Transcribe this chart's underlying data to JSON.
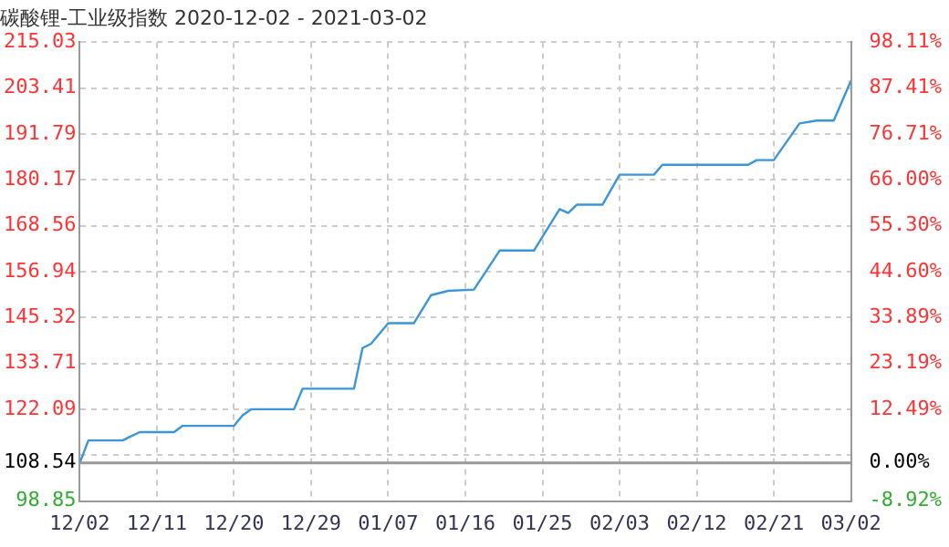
{
  "chart_data": {
    "type": "line",
    "title": "碳酸锂-工业级指数 2020-12-02 - 2021-03-02",
    "x": [
      "2020-12-02",
      "2020-12-03",
      "2020-12-07",
      "2020-12-08",
      "2020-12-09",
      "2020-12-13",
      "2020-12-14",
      "2020-12-20",
      "2020-12-21",
      "2020-12-22",
      "2020-12-27",
      "2020-12-28",
      "2021-01-03",
      "2021-01-04",
      "2021-01-05",
      "2021-01-07",
      "2021-01-10",
      "2021-01-12",
      "2021-01-14",
      "2021-01-17",
      "2021-01-20",
      "2021-01-24",
      "2021-01-27",
      "2021-01-28",
      "2021-01-29",
      "2021-02-01",
      "2021-02-03",
      "2021-02-07",
      "2021-02-08",
      "2021-02-18",
      "2021-02-19",
      "2021-02-21",
      "2021-02-24",
      "2021-02-26",
      "2021-02-28",
      "2021-03-02"
    ],
    "series": [
      {
        "color": "#3a96d8",
        "values": [
          108.54,
          114.2,
          114.2,
          115.3,
          116.3,
          116.3,
          117.9,
          117.9,
          120.6,
          122.1,
          122.1,
          127.3,
          127.3,
          137.6,
          138.7,
          143.9,
          143.9,
          151.0,
          152.1,
          152.4,
          162.3,
          162.3,
          172.8,
          171.8,
          173.9,
          173.9,
          181.5,
          181.5,
          184.0,
          184.0,
          185.2,
          185.2,
          194.5,
          195.2,
          195.2,
          205.3
        ]
      }
    ],
    "xlim": [
      "2020-12-02",
      "2021-03-02"
    ],
    "xticks": [
      {
        "value": "2020-12-02",
        "label": "12/02"
      },
      {
        "value": "2020-12-11",
        "label": "12/11"
      },
      {
        "value": "2020-12-20",
        "label": "12/20"
      },
      {
        "value": "2020-12-29",
        "label": "12/29"
      },
      {
        "value": "2021-01-07",
        "label": "01/07"
      },
      {
        "value": "2021-01-16",
        "label": "01/16"
      },
      {
        "value": "2021-01-25",
        "label": "01/25"
      },
      {
        "value": "2021-02-03",
        "label": "02/03"
      },
      {
        "value": "2021-02-12",
        "label": "02/12"
      },
      {
        "value": "2021-02-21",
        "label": "02/21"
      },
      {
        "value": "2021-03-02",
        "label": "03/02"
      }
    ],
    "ylim": [
      98.85,
      215.03
    ],
    "yticks": [
      98.85,
      108.54,
      {
        "value": 110.47,
        "label": null
      },
      122.09,
      133.71,
      145.32,
      156.94,
      168.56,
      180.17,
      191.79,
      203.41,
      215.03
    ],
    "y2lim": [
      -8.92,
      98.11
    ],
    "y2ticks": [
      {
        "value": -8.92,
        "label": "-8.92%"
      },
      {
        "value": 0,
        "label": "0.00%"
      },
      {
        "value": 12.49,
        "label": "12.49%"
      },
      {
        "value": 23.19,
        "label": "23.19%"
      },
      {
        "value": 33.89,
        "label": "33.89%"
      },
      {
        "value": 44.6,
        "label": "44.60%"
      },
      {
        "value": 55.3,
        "label": "55.30%"
      },
      {
        "value": 66.0,
        "label": "66.00%"
      },
      {
        "value": 76.71,
        "label": "76.71%"
      },
      {
        "value": 87.41,
        "label": "87.41%"
      },
      {
        "value": 98.11,
        "label": "98.11%"
      }
    ],
    "ref_lines": [
      {
        "axis": "y",
        "value": 108.54,
        "color": "#999999"
      }
    ],
    "grid": true,
    "legend": false,
    "marker": "none",
    "line_style": "solid"
  }
}
